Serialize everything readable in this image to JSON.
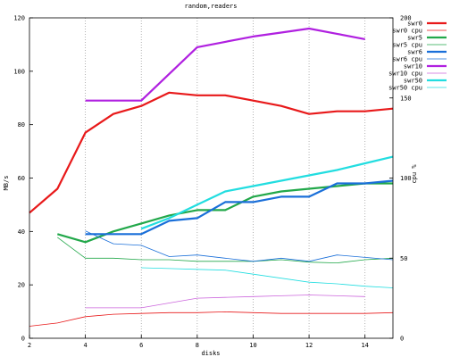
{
  "chart_data": {
    "type": "line",
    "title": "random,readers",
    "xlabel": "disks",
    "ylabel": "MB/s",
    "y2label": "cpu %",
    "xlim": [
      2,
      15
    ],
    "ylim": [
      0,
      120
    ],
    "y2lim": [
      0,
      200
    ],
    "xticks": [
      2,
      4,
      6,
      8,
      10,
      12,
      14
    ],
    "yticks": [
      0,
      20,
      40,
      60,
      80,
      100,
      120
    ],
    "y2ticks": [
      0,
      50,
      100,
      150,
      200
    ],
    "grid": "vertical dotted at x ticks",
    "legend_position": "top-right",
    "series": [
      {
        "name": "swr0",
        "axis": "left",
        "color": "#e8191a",
        "width": 2.2,
        "x": [
          2,
          3,
          4,
          5,
          6,
          7,
          8,
          9,
          10,
          11,
          12,
          13,
          14,
          15
        ],
        "y": [
          47,
          56,
          77,
          84,
          87,
          92,
          91,
          91,
          89,
          87,
          84,
          85,
          85,
          86
        ]
      },
      {
        "name": "swr0 cpu",
        "axis": "right",
        "color": "#e8191a",
        "width": 0.8,
        "x": [
          2,
          3,
          4,
          5,
          6,
          7,
          8,
          9,
          10,
          11,
          12,
          13,
          14,
          15
        ],
        "y": [
          7.5,
          9.5,
          13.5,
          15,
          15.5,
          16,
          16,
          16.5,
          16,
          15.5,
          15.5,
          15.5,
          15.5,
          16
        ]
      },
      {
        "name": "swr5",
        "axis": "left",
        "color": "#22a84a",
        "width": 2.2,
        "x": [
          3,
          4,
          5,
          6,
          7,
          8,
          9,
          10,
          11,
          12,
          13,
          14,
          15
        ],
        "y": [
          39,
          36,
          40,
          43,
          46,
          48,
          48,
          53,
          55,
          56,
          57,
          58,
          58
        ]
      },
      {
        "name": "swr5 cpu",
        "axis": "right",
        "color": "#22a84a",
        "width": 0.8,
        "x": [
          3,
          4,
          5,
          6,
          7,
          8,
          9,
          10,
          11,
          12,
          13,
          14,
          15
        ],
        "y": [
          63,
          50,
          50,
          49,
          49,
          48,
          48,
          48,
          49,
          47.5,
          47,
          49,
          50
        ]
      },
      {
        "name": "swr6",
        "axis": "left",
        "color": "#1a6fd9",
        "width": 2.2,
        "x": [
          4,
          5,
          6,
          7,
          8,
          9,
          10,
          11,
          12,
          13,
          14,
          15
        ],
        "y": [
          39,
          39,
          39,
          44,
          45,
          51,
          51,
          53,
          53,
          58,
          58,
          59
        ]
      },
      {
        "name": "swr6 cpu",
        "axis": "right",
        "color": "#1a6fd9",
        "width": 0.8,
        "x": [
          4,
          5,
          6,
          7,
          8,
          9,
          10,
          11,
          12,
          13,
          14,
          15
        ],
        "y": [
          67,
          59,
          58,
          51,
          52,
          50,
          48,
          50,
          48,
          52,
          50.5,
          49
        ]
      },
      {
        "name": "swr10",
        "axis": "left",
        "color": "#b020e0",
        "width": 2.2,
        "x": [
          4,
          5,
          6,
          7,
          8,
          9,
          10,
          11,
          12,
          13,
          14
        ],
        "y": [
          89,
          89,
          89,
          99,
          109,
          111,
          113,
          114.5,
          116,
          114,
          112
        ]
      },
      {
        "name": "swr10 cpu",
        "axis": "right",
        "color": "#cc66dd",
        "width": 0.8,
        "x": [
          4,
          5,
          6,
          7,
          8,
          9,
          10,
          11,
          12,
          13,
          14
        ],
        "y": [
          19,
          19,
          19,
          22,
          25,
          25.5,
          26,
          26.5,
          27,
          26.5,
          26
        ]
      },
      {
        "name": "swr50",
        "axis": "left",
        "color": "#22dde0",
        "width": 2.2,
        "x": [
          6,
          7,
          8,
          9,
          10,
          11,
          12,
          13,
          14,
          15
        ],
        "y": [
          41,
          45,
          50,
          55,
          57,
          59,
          61,
          63,
          65.5,
          68
        ]
      },
      {
        "name": "swr50 cpu",
        "axis": "right",
        "color": "#22dde0",
        "width": 0.8,
        "x": [
          6,
          7,
          8,
          9,
          10,
          11,
          12,
          13,
          14,
          15
        ],
        "y": [
          44,
          43.5,
          43,
          42.5,
          40,
          37.5,
          35,
          34,
          32.5,
          31.5
        ]
      }
    ]
  }
}
